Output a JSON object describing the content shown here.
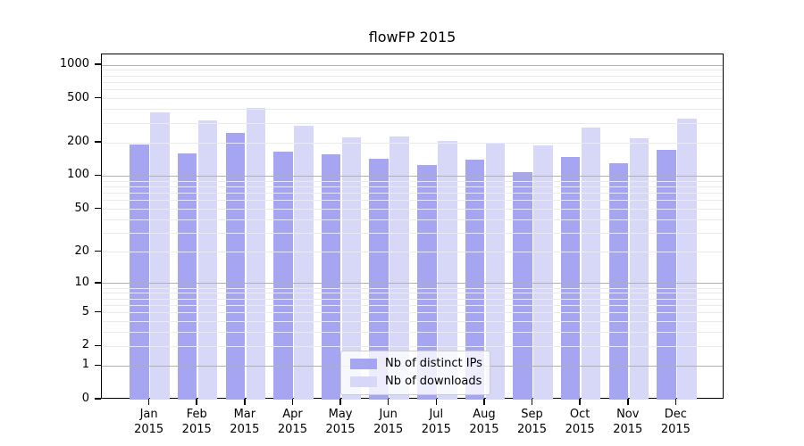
{
  "title": "flowFP 2015",
  "chart_data": {
    "type": "bar",
    "title": "flowFP 2015",
    "categories": [
      [
        "Jan",
        "2015"
      ],
      [
        "Feb",
        "2015"
      ],
      [
        "Mar",
        "2015"
      ],
      [
        "Apr",
        "2015"
      ],
      [
        "May",
        "2015"
      ],
      [
        "Jun",
        "2015"
      ],
      [
        "Jul",
        "2015"
      ],
      [
        "Aug",
        "2015"
      ],
      [
        "Sep",
        "2015"
      ],
      [
        "Oct",
        "2015"
      ],
      [
        "Nov",
        "2015"
      ],
      [
        "Dec",
        "2015"
      ]
    ],
    "series": [
      {
        "name": "Nb of distinct IPs",
        "color": "#a5a5f2",
        "values": [
          193,
          160,
          247,
          167,
          158,
          143,
          126,
          140,
          109,
          149,
          130,
          174
        ]
      },
      {
        "name": "Nb of downloads",
        "color": "#d7d7f8",
        "values": [
          378,
          318,
          415,
          283,
          225,
          230,
          210,
          200,
          190,
          275,
          221,
          328
        ]
      }
    ],
    "y_axis": {
      "scale": "log10(value+1)",
      "tick_values": [
        0,
        1,
        2,
        5,
        10,
        20,
        50,
        100,
        200,
        500,
        1000
      ],
      "range": [
        0,
        1250
      ],
      "minor_gridlines": true,
      "major_gridline_values": [
        1,
        10,
        100,
        1000
      ]
    },
    "xlabel": "",
    "ylabel": "",
    "legend_position": "lower-center",
    "grid": true
  }
}
